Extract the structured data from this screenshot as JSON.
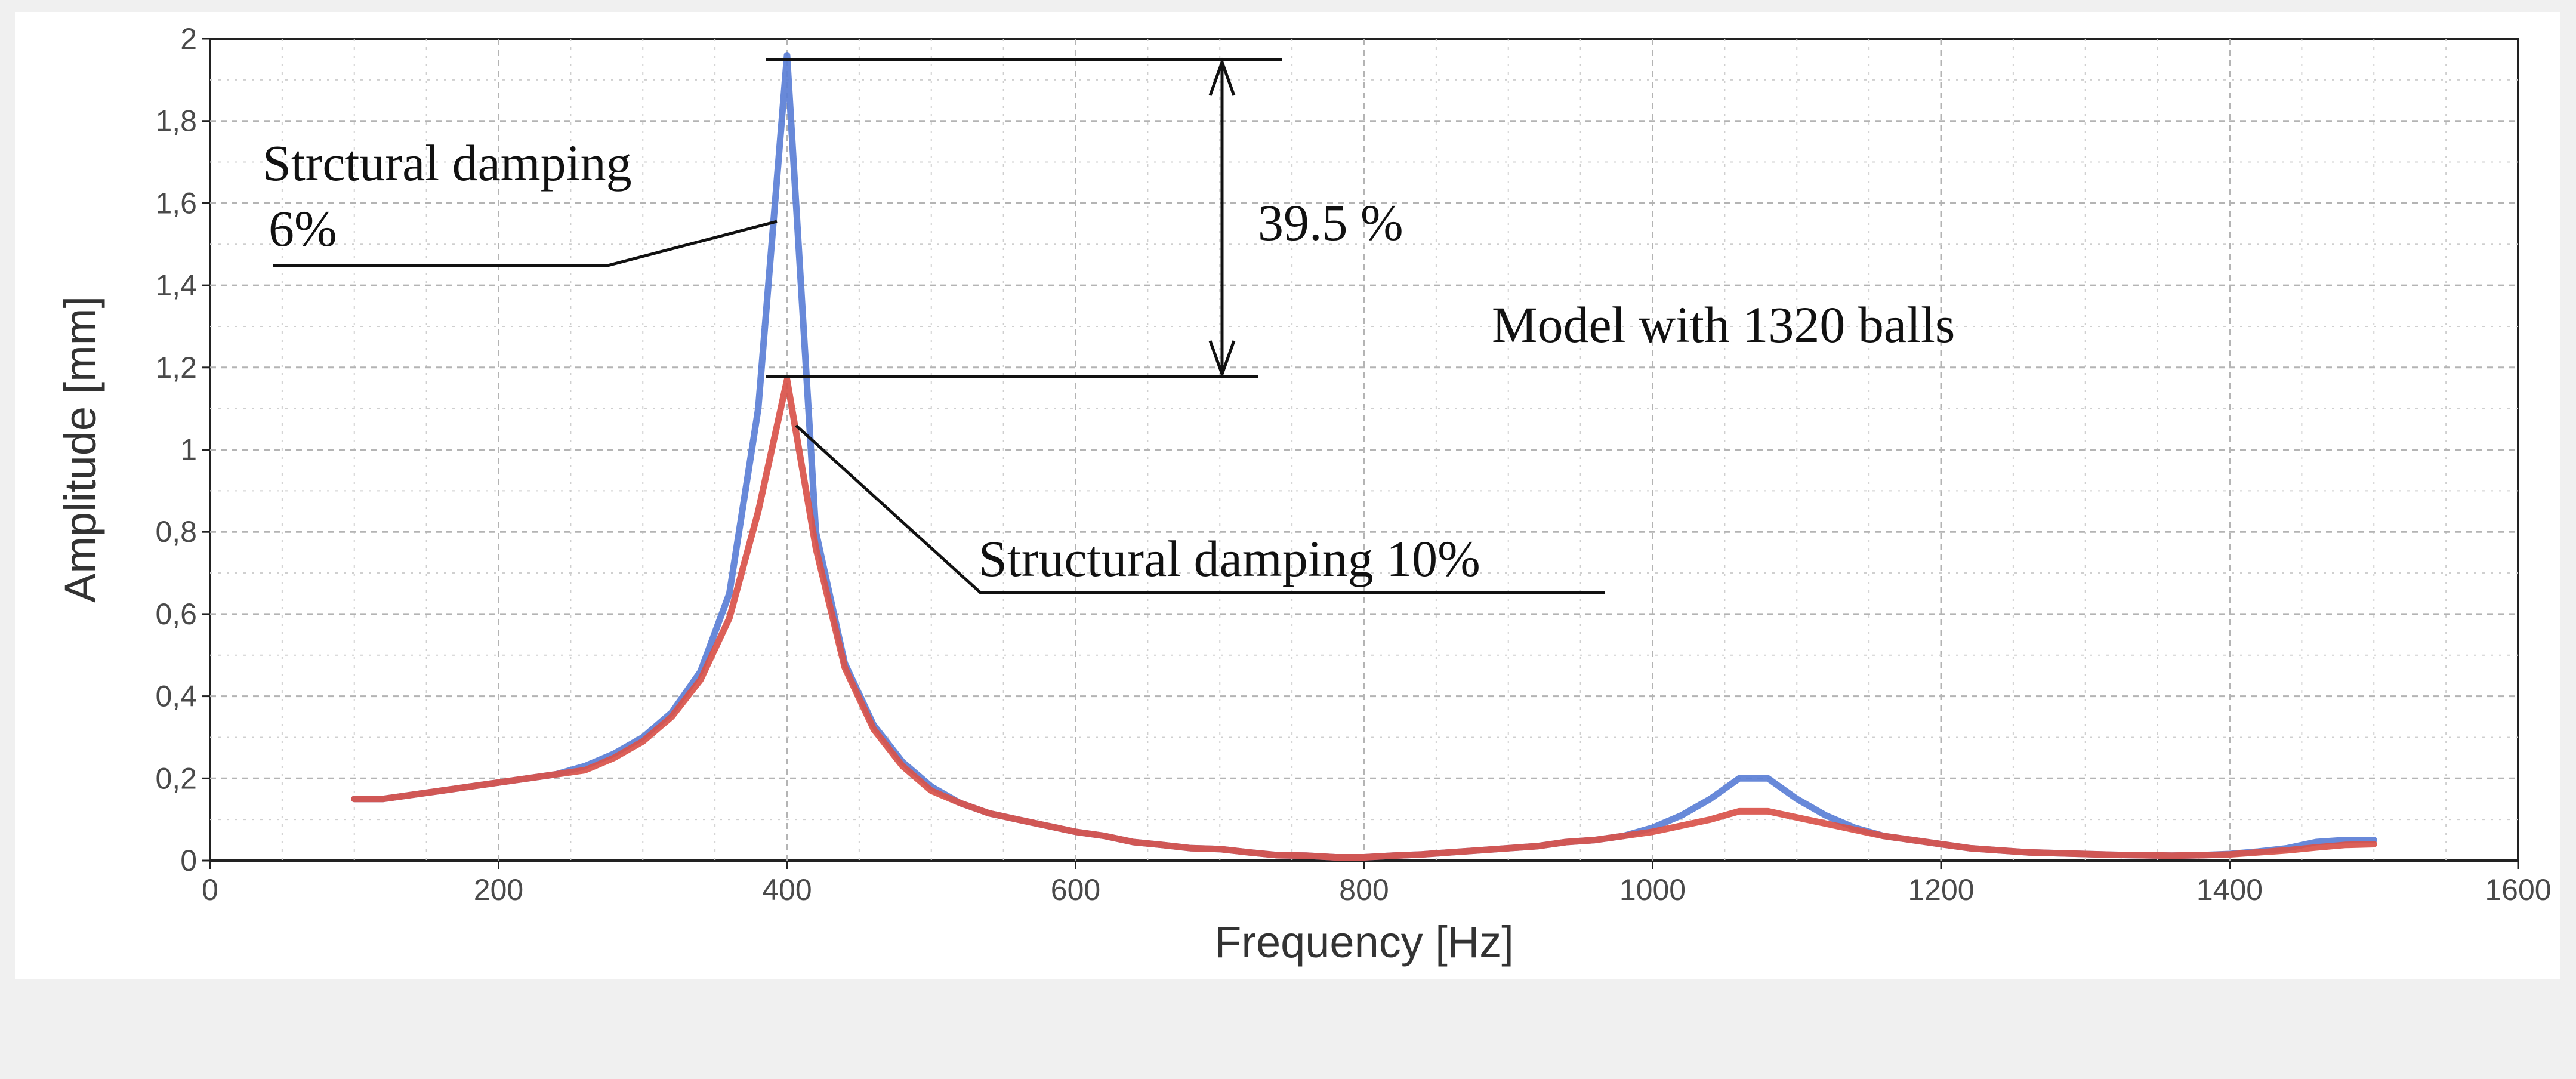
{
  "chart_data": {
    "type": "line",
    "xlabel": "Frequency [Hz]",
    "ylabel": "Amplitude [mm]",
    "xlim": [
      0,
      1600
    ],
    "ylim": [
      0,
      2
    ],
    "x_ticks": [
      0,
      200,
      400,
      600,
      800,
      1000,
      1200,
      1400,
      1600
    ],
    "x_tick_labels": [
      "0",
      "200",
      "400",
      "600",
      "800",
      "1000",
      "1200",
      "1400",
      "1600"
    ],
    "y_ticks": [
      0,
      0.2,
      0.4,
      0.6,
      0.8,
      1,
      1.2,
      1.4,
      1.6,
      1.8,
      2
    ],
    "y_tick_labels": [
      "0",
      "0,2",
      "0,4",
      "0,6",
      "0,8",
      "1",
      "1,2",
      "1,4",
      "1,6",
      "1,8",
      "2"
    ],
    "grid": true,
    "series": [
      {
        "name": "Strctural damping 6%",
        "color": "#5b7fd6",
        "x": [
          100,
          120,
          140,
          160,
          180,
          200,
          220,
          240,
          260,
          280,
          300,
          320,
          340,
          360,
          380,
          400,
          420,
          440,
          460,
          480,
          500,
          520,
          540,
          560,
          580,
          600,
          620,
          640,
          660,
          680,
          700,
          720,
          740,
          760,
          780,
          800,
          820,
          840,
          860,
          880,
          900,
          920,
          940,
          960,
          980,
          1000,
          1020,
          1040,
          1060,
          1080,
          1100,
          1120,
          1140,
          1160,
          1180,
          1200,
          1220,
          1240,
          1260,
          1280,
          1300,
          1320,
          1340,
          1360,
          1380,
          1400,
          1420,
          1440,
          1460,
          1480,
          1500
        ],
        "y": [
          0.15,
          0.15,
          0.16,
          0.17,
          0.18,
          0.19,
          0.2,
          0.21,
          0.23,
          0.26,
          0.3,
          0.36,
          0.46,
          0.65,
          1.1,
          1.96,
          0.8,
          0.48,
          0.33,
          0.24,
          0.18,
          0.14,
          0.115,
          0.1,
          0.085,
          0.07,
          0.06,
          0.045,
          0.038,
          0.03,
          0.028,
          0.02,
          0.013,
          0.012,
          0.008,
          0.008,
          0.012,
          0.015,
          0.02,
          0.025,
          0.03,
          0.035,
          0.045,
          0.05,
          0.06,
          0.08,
          0.11,
          0.15,
          0.2,
          0.2,
          0.15,
          0.11,
          0.08,
          0.06,
          0.05,
          0.04,
          0.03,
          0.025,
          0.02,
          0.018,
          0.016,
          0.014,
          0.013,
          0.012,
          0.013,
          0.016,
          0.022,
          0.03,
          0.045,
          0.05,
          0.05
        ]
      },
      {
        "name": "Structural damping 10%",
        "color": "#d9534a",
        "x": [
          100,
          120,
          140,
          160,
          180,
          200,
          220,
          240,
          260,
          280,
          300,
          320,
          340,
          360,
          380,
          400,
          420,
          440,
          460,
          480,
          500,
          520,
          540,
          560,
          580,
          600,
          620,
          640,
          660,
          680,
          700,
          720,
          740,
          760,
          780,
          800,
          820,
          840,
          860,
          880,
          900,
          920,
          940,
          960,
          980,
          1000,
          1020,
          1040,
          1060,
          1080,
          1100,
          1120,
          1140,
          1160,
          1180,
          1200,
          1220,
          1240,
          1260,
          1280,
          1300,
          1320,
          1340,
          1360,
          1380,
          1400,
          1420,
          1440,
          1460,
          1480,
          1500
        ],
        "y": [
          0.15,
          0.15,
          0.16,
          0.17,
          0.18,
          0.19,
          0.2,
          0.21,
          0.22,
          0.25,
          0.29,
          0.35,
          0.44,
          0.59,
          0.85,
          1.17,
          0.76,
          0.47,
          0.32,
          0.23,
          0.17,
          0.14,
          0.115,
          0.1,
          0.085,
          0.07,
          0.06,
          0.045,
          0.038,
          0.03,
          0.028,
          0.02,
          0.013,
          0.012,
          0.008,
          0.008,
          0.012,
          0.015,
          0.02,
          0.025,
          0.03,
          0.035,
          0.045,
          0.05,
          0.06,
          0.07,
          0.085,
          0.1,
          0.12,
          0.12,
          0.105,
          0.09,
          0.075,
          0.06,
          0.05,
          0.04,
          0.03,
          0.025,
          0.02,
          0.018,
          0.016,
          0.014,
          0.013,
          0.012,
          0.013,
          0.015,
          0.02,
          0.025,
          0.032,
          0.038,
          0.04
        ]
      }
    ],
    "annotations": {
      "series1_line1": "Strctural damping",
      "series1_line2": "6%",
      "series2_label": "Structural damping 10%",
      "difference_label": "39.5 %",
      "model_label": "Model with 1320 balls"
    }
  }
}
